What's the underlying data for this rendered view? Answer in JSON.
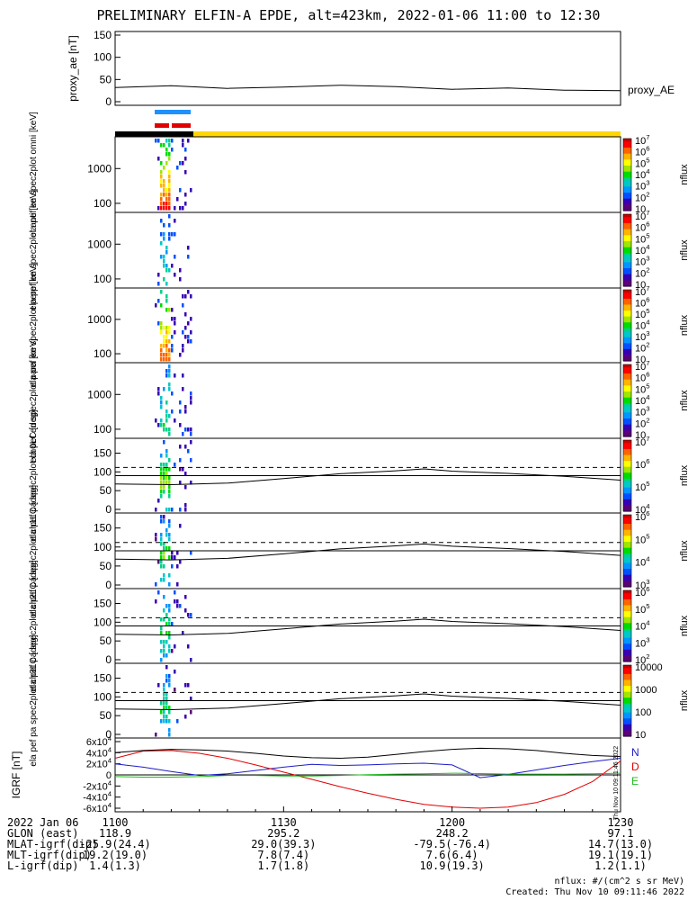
{
  "title": "PRELIMINARY ELFIN-A EPDE, alt=423km, 2022-01-06 11:00 to 12:30",
  "created": "Created: Thu Nov 10 09:11:46 2022",
  "flux_units": "nflux: #/(cm^2 s sr MeV)",
  "side_note": "Thu Nov 10 09:11:46 2022",
  "colors": {
    "sunlit_bar": "#ffd700",
    "shadow_bar": "#000000",
    "sci_zone_blue": "#1e90ff",
    "sci_zone_red": "#e00000",
    "by": "#e00000",
    "bn": "#1c1cc8",
    "be": "#22bb22"
  },
  "chart_data": [
    {
      "type": "line",
      "panel": "proxy_ae",
      "ylabel": "proxy_ae [nT]",
      "legend": "proxy_AE",
      "ylim": [
        0,
        150
      ],
      "yticks": [
        "0",
        "50",
        "100",
        "150"
      ],
      "x_minutes": [
        0,
        10,
        20,
        30,
        40,
        50,
        60,
        70,
        80,
        90
      ],
      "values": [
        32,
        36,
        30,
        33,
        37,
        34,
        28,
        31,
        26,
        25
      ]
    },
    {
      "type": "heatmap",
      "panel": "omni",
      "ylabel": "ela pef en spec2plot omni [keV]",
      "yticks": [
        "100",
        "1000"
      ],
      "colorbar": {
        "label": "nflux",
        "ticks": [
          "10",
          "10^2",
          "10^3",
          "10^4",
          "10^5",
          "10^6",
          "10^7"
        ]
      }
    },
    {
      "type": "heatmap",
      "panel": "anti",
      "ylabel": "ela pef en spec2plot anti [keV]",
      "yticks": [
        "100",
        "1000"
      ],
      "colorbar": {
        "label": "nflux",
        "ticks": [
          "10",
          "10^2",
          "10^3",
          "10^4",
          "10^5",
          "10^6",
          "10^7"
        ]
      }
    },
    {
      "type": "heatmap",
      "panel": "perp",
      "ylabel": "ela pef en spec2plot perp [keV]",
      "yticks": [
        "100",
        "1000"
      ],
      "colorbar": {
        "label": "nflux",
        "ticks": [
          "10",
          "10^2",
          "10^3",
          "10^4",
          "10^5",
          "10^6",
          "10^7"
        ]
      }
    },
    {
      "type": "heatmap",
      "panel": "para",
      "ylabel": "ela pef en spec2plot para [keV]",
      "yticks": [
        "100",
        "1000"
      ],
      "colorbar": {
        "label": "nflux",
        "ticks": [
          "10",
          "10^2",
          "10^3",
          "10^4",
          "10^5",
          "10^6",
          "10^7"
        ]
      }
    },
    {
      "type": "heatmap",
      "panel": "ch0LC",
      "ylabel": "ela pef pa spec2plot ch0LC [deg]",
      "ylim": [
        0,
        180
      ],
      "yticks": [
        "0",
        "50",
        "100",
        "150"
      ],
      "colorbar": {
        "label": "nflux",
        "ticks": [
          "10^4",
          "10^5",
          "10^6",
          "10^7"
        ]
      }
    },
    {
      "type": "heatmap",
      "panel": "ch1LC",
      "ylabel": "ela pef pa spec2plot ch1LC [deg]",
      "ylim": [
        0,
        180
      ],
      "yticks": [
        "0",
        "50",
        "100",
        "150"
      ],
      "colorbar": {
        "label": "nflux",
        "ticks": [
          "10^3",
          "10^4",
          "10^5",
          "10^6"
        ]
      }
    },
    {
      "type": "heatmap",
      "panel": "ch2LC",
      "ylabel": "ela pef pa spec2plot ch2LC [deg]",
      "ylim": [
        0,
        180
      ],
      "yticks": [
        "0",
        "50",
        "100",
        "150"
      ],
      "colorbar": {
        "label": "nflux",
        "ticks": [
          "10^2",
          "10^3",
          "10^4",
          "10^5",
          "10^6"
        ]
      }
    },
    {
      "type": "heatmap",
      "panel": "ch3LC",
      "ylabel": "ela pef pa spec2plot ch3LC [deg]",
      "ylim": [
        0,
        180
      ],
      "yticks": [
        "0",
        "50",
        "100",
        "150"
      ],
      "colorbar": {
        "label": "nflux",
        "ticks": [
          "10",
          "100",
          "1000",
          "10000"
        ]
      }
    },
    {
      "type": "line",
      "panel": "igrf",
      "ylabel": "IGRF [nT]",
      "ylim": [
        -60000,
        60000
      ],
      "yticks": [
        "-6x10^4",
        "-4x10^4",
        "-2x10^4",
        "0",
        "2x10^4",
        "4x10^4",
        "6x10^4"
      ],
      "legend": [
        "N",
        "D",
        "E"
      ],
      "x_minutes": [
        0,
        5,
        10,
        15,
        20,
        25,
        30,
        35,
        40,
        45,
        50,
        55,
        60,
        65,
        70,
        75,
        80,
        85,
        90
      ],
      "series": [
        {
          "name": "N",
          "color": "#1c1cc8",
          "values": [
            20000,
            14000,
            6000,
            -1000,
            2000,
            8000,
            14000,
            19000,
            17000,
            18000,
            20000,
            21000,
            18000,
            -5000,
            1000,
            9000,
            17000,
            24000,
            30000
          ]
        },
        {
          "name": "D",
          "color": "#e00000",
          "values": [
            30000,
            43000,
            44000,
            39000,
            30000,
            18000,
            5000,
            -8000,
            -21000,
            -33000,
            -44000,
            -53000,
            -58000,
            -60000,
            -58000,
            -50000,
            -35000,
            -12000,
            25000
          ]
        },
        {
          "name": "E",
          "color": "#22bb22",
          "values": [
            -3000,
            -4000,
            -4000,
            -3000,
            -1000,
            -1000,
            -2000,
            -2000,
            -1000,
            500,
            1500,
            2000,
            3000,
            2500,
            1500,
            1500,
            1500,
            2000,
            3000
          ]
        },
        {
          "name": "total",
          "color": "#000000",
          "values": [
            40000,
            44000,
            46000,
            45000,
            43000,
            39000,
            34000,
            31000,
            30000,
            32000,
            37000,
            42000,
            46000,
            48000,
            47000,
            44000,
            39000,
            35000,
            33000
          ]
        }
      ]
    }
  ],
  "xaxis": {
    "labels": [
      {
        "label": "2022 Jan 06",
        "values": [
          "1100",
          "1130",
          "1200",
          "1230"
        ]
      },
      {
        "label": "GLON (east)",
        "values": [
          "118.9",
          "295.2",
          "248.2",
          "97.1"
        ]
      },
      {
        "label": "MLAT-igrf(dip)",
        "values": [
          "-25.9(24.4)",
          "29.0(39.3)",
          "-79.5(-76.4)",
          "14.7(13.0)"
        ]
      },
      {
        "label": "MLT-igrf(dip)",
        "values": [
          "19.2(19.0)",
          "7.8(7.4)",
          "7.6(6.4)",
          "19.1(19.1)"
        ]
      },
      {
        "label": "L-igrf(dip)",
        "values": [
          "1.4(1.3)",
          "1.7(1.8)",
          "10.9(19.3)",
          "1.2(1.1)"
        ]
      }
    ]
  }
}
